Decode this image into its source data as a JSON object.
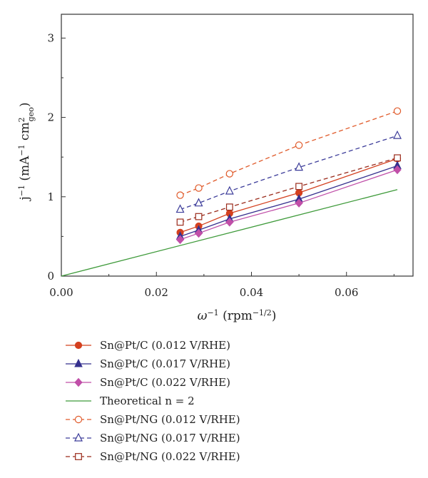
{
  "chart_data": {
    "type": "line",
    "xlabel": {
      "base": "ω",
      "sup": "−1",
      "rest": " (rpm",
      "rest_sup": "−1/2",
      "end": ")"
    },
    "ylabel": {
      "base": "j",
      "sup1": "−1",
      "rest": " (mA",
      "sup2": "−1",
      "cm": " cm",
      "cm_sup": "2",
      "cm_sub": "geo",
      "end": ")"
    },
    "xlim": [
      0,
      0.074
    ],
    "ylim": [
      0,
      3.3
    ],
    "x_ticks": [
      0.0,
      0.02,
      0.04,
      0.06
    ],
    "x_tick_labels": [
      "0.00",
      "0.02",
      "0.04",
      "0.06"
    ],
    "y_ticks": [
      0,
      1,
      2,
      3
    ],
    "y_tick_labels": [
      "0",
      "1",
      "2",
      "3"
    ],
    "grid": false,
    "legend_position": "below",
    "series": [
      {
        "name": "Sn@Pt/C (0.012 V/RHE)",
        "color": "#d4401f",
        "dash": "solid",
        "marker": "circle-filled",
        "x": [
          0.025,
          0.0289,
          0.0354,
          0.05,
          0.0707
        ],
        "y": [
          0.55,
          0.63,
          0.79,
          1.05,
          1.48
        ]
      },
      {
        "name": "Sn@Pt/C (0.017 V/RHE)",
        "color": "#35308e",
        "dash": "solid",
        "marker": "triangle-filled",
        "x": [
          0.025,
          0.0289,
          0.0354,
          0.05,
          0.0707
        ],
        "y": [
          0.5,
          0.58,
          0.72,
          0.97,
          1.39
        ]
      },
      {
        "name": "Sn@Pt/C (0.022 V/RHE)",
        "color": "#c04fa8",
        "dash": "solid",
        "marker": "diamond-filled",
        "x": [
          0.025,
          0.0289,
          0.0354,
          0.05,
          0.0707
        ],
        "y": [
          0.46,
          0.54,
          0.68,
          0.92,
          1.34
        ]
      },
      {
        "name": "Theoretical n = 2",
        "color": "#3e9a3a",
        "dash": "solid",
        "marker": "none",
        "x": [
          0.0,
          0.0707
        ],
        "y": [
          0.0,
          1.09
        ]
      },
      {
        "name": "Sn@Pt/NG (0.012 V/RHE)",
        "color": "#e05a2a",
        "dash": "dashed",
        "marker": "circle-open",
        "x": [
          0.025,
          0.0289,
          0.0354,
          0.05,
          0.0707
        ],
        "y": [
          1.02,
          1.11,
          1.29,
          1.65,
          2.08
        ]
      },
      {
        "name": "Sn@Pt/NG (0.017 V/RHE)",
        "color": "#3d3d9a",
        "dash": "dashed",
        "marker": "triangle-open",
        "x": [
          0.025,
          0.0289,
          0.0354,
          0.05,
          0.0707
        ],
        "y": [
          0.84,
          0.92,
          1.07,
          1.37,
          1.77
        ]
      },
      {
        "name": "Sn@Pt/NG (0.022 V/RHE)",
        "color": "#9a2a1a",
        "dash": "dashed",
        "marker": "square-open",
        "x": [
          0.025,
          0.0289,
          0.0354,
          0.05,
          0.0707
        ],
        "y": [
          0.68,
          0.75,
          0.87,
          1.13,
          1.49
        ]
      }
    ]
  }
}
